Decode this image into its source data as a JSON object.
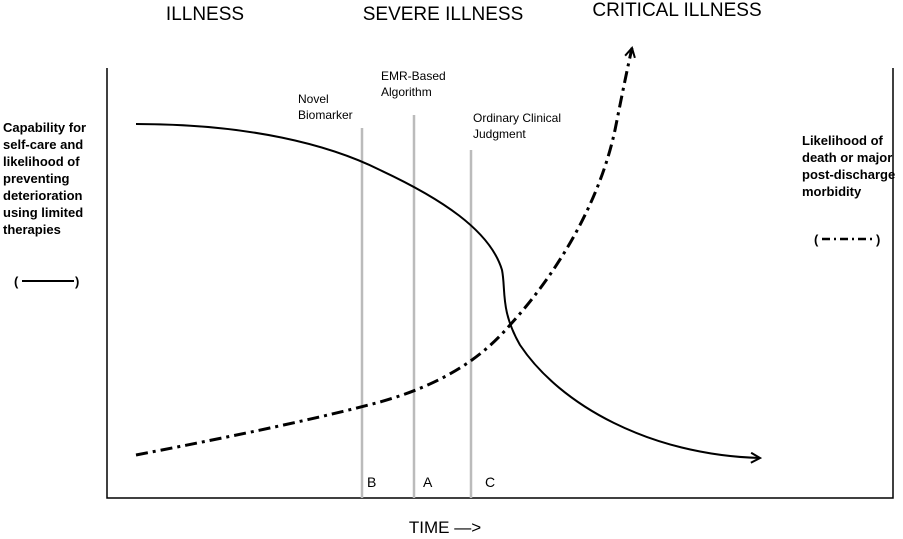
{
  "header": {
    "phases": [
      "ILLNESS",
      "SEVERE ILLNESS",
      "CRITICAL ILLNESS"
    ]
  },
  "left_label": {
    "lines": [
      "Capability for",
      "self-care and",
      "likelihood of",
      "preventing",
      "deterioration",
      "using limited",
      "therapies"
    ],
    "legend_open": "(",
    "legend_close": ")"
  },
  "right_label": {
    "lines": [
      "Likelihood of",
      "death or major",
      "post-discharge",
      "morbidity"
    ],
    "legend_open": "(",
    "legend_close": ")"
  },
  "markers": [
    {
      "label": [
        "Novel",
        "Biomarker"
      ],
      "letter": "B"
    },
    {
      "label": [
        "EMR-Based",
        "Algorithm"
      ],
      "letter": "A"
    },
    {
      "label": [
        "Ordinary Clinical",
        "Judgment"
      ],
      "letter": "C"
    }
  ],
  "x_label": "TIME —>"
}
